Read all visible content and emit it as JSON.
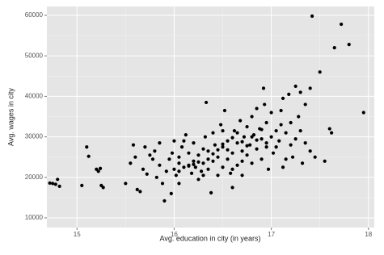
{
  "chart_data": {
    "type": "scatter",
    "x_label": "Avg. education in city (in years)",
    "y_label": "Avg. wages in city",
    "xlim": [
      14.69,
      18.06
    ],
    "ylim": [
      7610,
      62190
    ],
    "xticks": [
      15,
      16,
      17,
      18
    ],
    "yticks": [
      10000,
      20000,
      30000,
      40000,
      50000,
      60000
    ],
    "grid": true,
    "color": "#000000",
    "x": [
      14.75,
      14.78,
      14.8,
      14.82,
      14.72,
      15.05,
      15.1,
      15.12,
      15.2,
      15.22,
      15.24,
      15.25,
      15.27,
      15.5,
      15.55,
      15.58,
      15.6,
      15.62,
      15.65,
      15.68,
      15.7,
      15.72,
      15.75,
      15.78,
      15.8,
      15.82,
      15.85,
      15.85,
      15.88,
      15.9,
      15.92,
      15.95,
      15.97,
      15.98,
      16.0,
      16.02,
      16.05,
      16.05,
      16.08,
      16.1,
      16.1,
      16.12,
      16.15,
      16.15,
      16.18,
      16.2,
      16.2,
      16.22,
      16.25,
      16.25,
      16.28,
      16.3,
      16.3,
      16.32,
      16.33,
      16.35,
      16.35,
      16.38,
      16.4,
      16.4,
      16.42,
      16.45,
      16.45,
      16.48,
      16.5,
      16.5,
      16.52,
      16.55,
      16.55,
      16.58,
      16.6,
      16.6,
      16.62,
      16.65,
      16.65,
      16.68,
      16.7,
      16.7,
      16.72,
      16.75,
      16.75,
      16.78,
      16.8,
      16.8,
      16.82,
      16.85,
      16.85,
      16.88,
      16.9,
      16.9,
      16.92,
      16.93,
      16.95,
      16.95,
      16.97,
      17.0,
      17.0,
      17.02,
      17.05,
      17.08,
      17.1,
      17.12,
      17.12,
      17.15,
      17.15,
      17.18,
      17.2,
      17.2,
      17.22,
      17.25,
      17.25,
      17.28,
      17.3,
      17.32,
      17.35,
      17.4,
      17.42,
      17.45,
      17.5,
      17.55,
      17.6,
      17.62,
      17.65,
      17.72,
      17.8,
      17.95,
      16.15,
      16.2,
      16.25,
      16.35,
      16.4,
      16.45,
      16.5,
      16.55,
      16.6,
      16.65,
      16.7,
      16.75,
      16.8,
      16.85,
      16.9,
      16.95,
      17.05,
      17.1,
      17.3,
      17.35,
      17.4,
      16.0,
      16.05,
      16.3,
      16.5,
      16.6,
      16.7,
      16.05
    ],
    "y": [
      18500,
      18300,
      19500,
      17800,
      18600,
      18000,
      27500,
      25200,
      22000,
      21500,
      22200,
      18000,
      17500,
      18500,
      23500,
      28000,
      25000,
      17000,
      16500,
      22000,
      27500,
      20800,
      25500,
      24500,
      26500,
      20000,
      23000,
      28500,
      18500,
      14200,
      21500,
      24500,
      16000,
      26000,
      22000,
      20500,
      21500,
      25000,
      27500,
      22500,
      29000,
      30500,
      23000,
      26000,
      21000,
      24000,
      28500,
      22500,
      19500,
      25500,
      21500,
      27000,
      23500,
      30000,
      38500,
      22000,
      26500,
      16200,
      24000,
      31000,
      28000,
      20500,
      25000,
      33000,
      22500,
      27500,
      36500,
      29000,
      24500,
      21000,
      17500,
      26000,
      31500,
      28500,
      23000,
      34000,
      26500,
      20500,
      30000,
      32500,
      25500,
      28000,
      35000,
      23500,
      30500,
      27000,
      37000,
      32000,
      24500,
      29500,
      42000,
      38000,
      27500,
      33500,
      22000,
      30000,
      36000,
      26000,
      31500,
      29000,
      36500,
      39500,
      22500,
      24500,
      31000,
      40500,
      28000,
      33500,
      25000,
      42500,
      29500,
      35000,
      41000,
      23500,
      38000,
      42000,
      59800,
      25000,
      46000,
      24000,
      32000,
      31000,
      52000,
      57800,
      52800,
      36000,
      22800,
      23200,
      23800,
      24500,
      25800,
      26800,
      28200,
      26800,
      29800,
      31000,
      28800,
      27800,
      30000,
      29200,
      31800,
      28500,
      27500,
      33000,
      31500,
      28500,
      26500,
      29000,
      18500,
      20500,
      31500,
      22000,
      24000,
      23500
    ]
  }
}
